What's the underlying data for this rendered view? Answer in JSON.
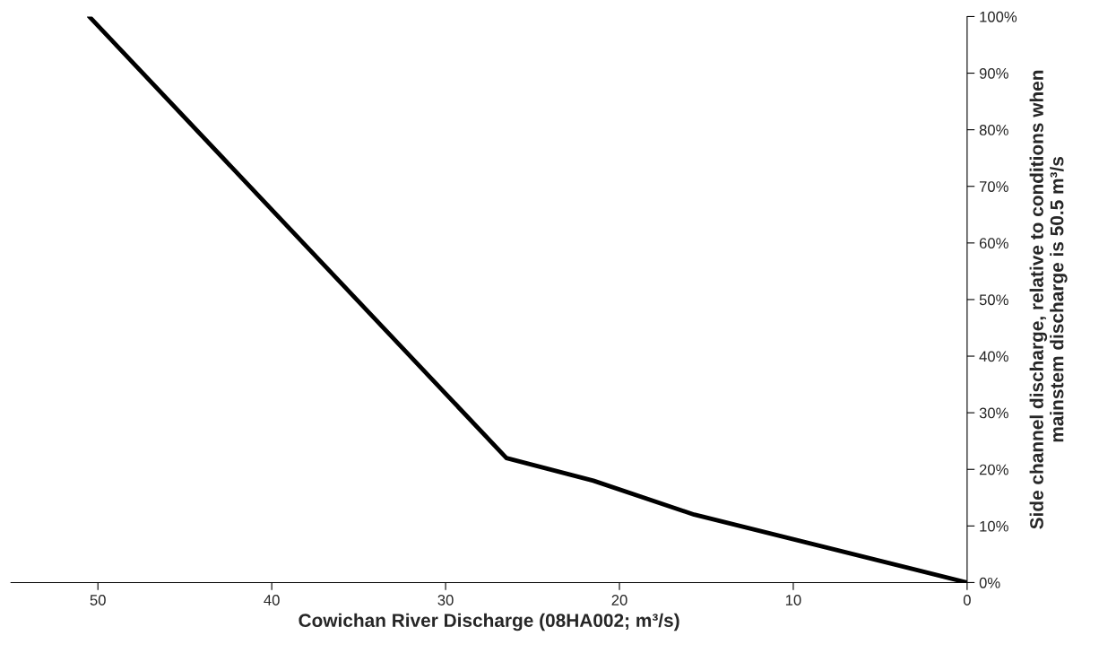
{
  "chart_data": {
    "type": "line",
    "xlabel": "Cowichan River Discharge (08HA002; m³/s)",
    "ylabel": "Side channel discharge, relative to conditions when\nmainstem discharge is 50.5 m³/s",
    "series": [
      {
        "color": "#000000",
        "x": [
          50.5,
          26.5,
          21.5,
          15.7,
          0
        ],
        "values": [
          100,
          22,
          18,
          12,
          0
        ]
      }
    ],
    "xlim": [
      55,
      0
    ],
    "xticks": [
      50,
      40,
      30,
      20,
      10,
      0
    ],
    "ylim": [
      0,
      100
    ],
    "yticks": [
      {
        "value": 0,
        "label": "0%"
      },
      {
        "value": 10,
        "label": "10%"
      },
      {
        "value": 20,
        "label": "20%"
      },
      {
        "value": 30,
        "label": "30%"
      },
      {
        "value": 40,
        "label": "40%"
      },
      {
        "value": 50,
        "label": "50%"
      },
      {
        "value": 60,
        "label": "60%"
      },
      {
        "value": 70,
        "label": "70%"
      },
      {
        "value": 80,
        "label": "80%"
      },
      {
        "value": 90,
        "label": "90%"
      },
      {
        "value": 100,
        "label": "100%"
      }
    ],
    "grid": false,
    "legend": false,
    "marker": "none",
    "line_style": "solid"
  }
}
